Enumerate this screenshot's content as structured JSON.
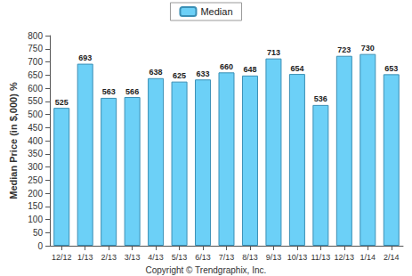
{
  "chart_data": {
    "type": "bar",
    "y_label": "Median Price (in $,000) %",
    "categories": [
      "12/12",
      "1/13",
      "2/13",
      "3/13",
      "4/13",
      "5/13",
      "6/13",
      "7/13",
      "8/13",
      "9/13",
      "10/13",
      "11/13",
      "12/13",
      "1/14",
      "2/14"
    ],
    "series": [
      {
        "name": "Median",
        "color": "#6cd0f7",
        "values": [
          525,
          693,
          563,
          566,
          638,
          625,
          633,
          660,
          648,
          713,
          654,
          536,
          723,
          730,
          653
        ]
      }
    ],
    "ylim": [
      0,
      800
    ],
    "yticks": [
      0,
      50,
      100,
      150,
      200,
      250,
      300,
      350,
      400,
      450,
      500,
      550,
      600,
      650,
      700,
      750,
      800
    ],
    "grid": false,
    "legend": "top",
    "data_labels": true,
    "annotations": [
      "Copyright © Trendgraphix, Inc."
    ]
  }
}
